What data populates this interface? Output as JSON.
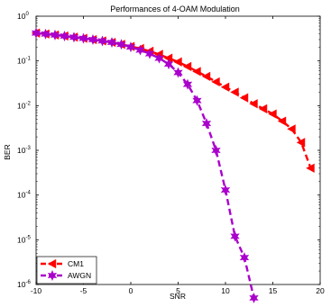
{
  "chart_data": {
    "type": "line",
    "title": "Performances of 4-OAM Modulation",
    "xlabel": "SNR",
    "ylabel": "BER",
    "xlim": [
      -10,
      20
    ],
    "ylim": [
      1e-06,
      1
    ],
    "yscale": "log",
    "xticks": [
      -10,
      -5,
      0,
      5,
      10,
      15,
      20
    ],
    "xtick_labels": [
      "-10",
      "-5",
      "0",
      "5",
      "10",
      "15",
      "20"
    ],
    "yticks": [
      {
        "base": "10",
        "exp": "0",
        "value": 1
      },
      {
        "base": "10",
        "exp": "-1",
        "value": 0.1
      },
      {
        "base": "10",
        "exp": "-2",
        "value": 0.01
      },
      {
        "base": "10",
        "exp": "-3",
        "value": 0.001
      },
      {
        "base": "10",
        "exp": "-4",
        "value": 0.0001
      },
      {
        "base": "10",
        "exp": "-5",
        "value": 1e-05
      },
      {
        "base": "10",
        "exp": "-6",
        "value": 1e-06
      }
    ],
    "legend_position": "bottom-left",
    "grid": false,
    "series": [
      {
        "name": "CM1",
        "color": "#ff0000",
        "line_style": "dashed",
        "marker": "left-triangle",
        "x": [
          -10,
          -9,
          -8,
          -7,
          -6,
          -5,
          -4,
          -3,
          -2,
          -1,
          0,
          1,
          2,
          3,
          4,
          5,
          6,
          7,
          8,
          9,
          10,
          11,
          12,
          13,
          14,
          15,
          16,
          17,
          18,
          19
        ],
        "y": [
          0.42,
          0.4,
          0.38,
          0.36,
          0.34,
          0.32,
          0.3,
          0.28,
          0.26,
          0.235,
          0.21,
          0.19,
          0.165,
          0.14,
          0.115,
          0.095,
          0.075,
          0.058,
          0.045,
          0.034,
          0.026,
          0.02,
          0.015,
          0.011,
          0.0085,
          0.0065,
          0.0045,
          0.003,
          0.0015,
          0.0004
        ]
      },
      {
        "name": "AWGN",
        "color": "#aa00cc",
        "line_style": "dashed",
        "marker": "hexagram",
        "x": [
          -10,
          -9,
          -8,
          -7,
          -6,
          -5,
          -4,
          -3,
          -2,
          -1,
          0,
          1,
          2,
          3,
          4,
          5,
          6,
          7,
          8,
          9,
          10,
          11,
          12,
          13
        ],
        "y": [
          0.42,
          0.4,
          0.38,
          0.36,
          0.34,
          0.32,
          0.3,
          0.28,
          0.26,
          0.235,
          0.205,
          0.175,
          0.145,
          0.115,
          0.085,
          0.055,
          0.03,
          0.013,
          0.004,
          0.001,
          0.00013,
          1.2e-05,
          4e-06,
          5e-07
        ]
      }
    ]
  }
}
